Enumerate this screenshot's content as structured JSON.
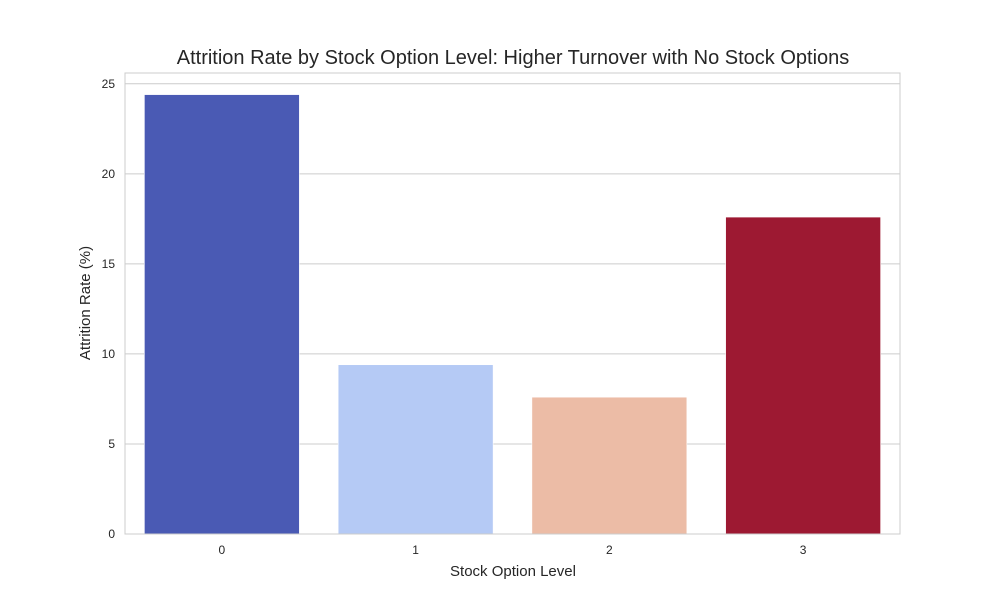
{
  "chart_data": {
    "type": "bar",
    "title": "Attrition Rate by Stock Option Level: Higher Turnover with No Stock Options",
    "xlabel": "Stock Option Level",
    "ylabel": "Attrition Rate (%)",
    "categories": [
      "0",
      "1",
      "2",
      "3"
    ],
    "values": [
      24.4,
      9.4,
      7.6,
      17.6
    ],
    "colors": [
      "#4a5ab4",
      "#b5caf5",
      "#ecbca6",
      "#9d1932"
    ],
    "ylim": [
      0,
      25.6
    ],
    "yticks": [
      0,
      5,
      10,
      15,
      20,
      25
    ],
    "grid": true,
    "legend": "none"
  }
}
